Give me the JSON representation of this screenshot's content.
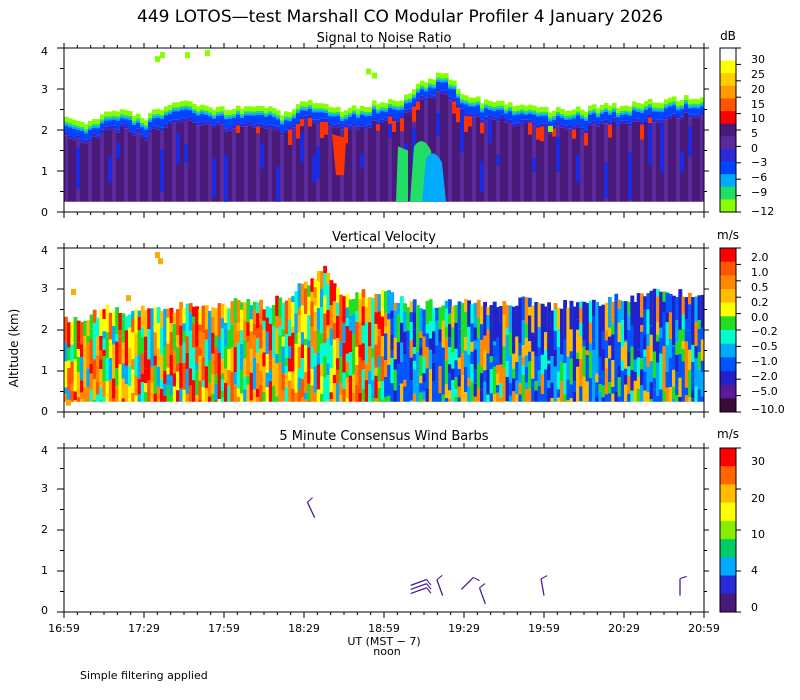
{
  "title": "449 LOTOS—test Marshall CO Modular Profiler  4 January 2026",
  "ylabel": "Altitude (km)",
  "xlabel": "UT  (MST − 7)",
  "noon_label": "noon",
  "footer": "Simple filtering applied",
  "x_ticks": [
    "16:59",
    "17:29",
    "17:59",
    "18:29",
    "18:59",
    "19:29",
    "19:59",
    "20:29",
    "20:59"
  ],
  "chart_data": [
    {
      "type": "heatmap",
      "title": "Signal to Noise Ratio",
      "unit": "dB",
      "x_range": [
        "16:59",
        "20:59"
      ],
      "ylim": [
        0,
        4
      ],
      "y_ticks": [
        "0",
        "1",
        "2",
        "3",
        "4"
      ],
      "colorbar": {
        "labels": [
          "30",
          "25",
          "20",
          "15",
          "10",
          "5",
          "0",
          "−3",
          "−6",
          "−9",
          "−12"
        ],
        "colors": [
          "#ffffff",
          "#ffff00",
          "#ffcc00",
          "#ff9900",
          "#ff5500",
          "#ff0000",
          "#4a1a7a",
          "#5b2a9a",
          "#2a2ad8",
          "#0044ff",
          "#00aaff",
          "#22dd66",
          "#88ff00"
        ]
      },
      "top_height_km": [
        2.3,
        2.1,
        2.4,
        2.5,
        2.3,
        2.6,
        2.7,
        2.6,
        2.5,
        2.6,
        2.6,
        2.4,
        2.7,
        2.6,
        2.5,
        2.6,
        2.7,
        2.8,
        3.2,
        3.4,
        2.9,
        2.7,
        2.7,
        2.6,
        2.5,
        2.5,
        2.5,
        2.6,
        2.6,
        2.7,
        2.7,
        2.8,
        2.8
      ]
    },
    {
      "type": "heatmap",
      "title": "Vertical Velocity",
      "unit": "m/s",
      "x_range": [
        "16:59",
        "20:59"
      ],
      "ylim": [
        0,
        4
      ],
      "y_ticks": [
        "0",
        "1",
        "2",
        "3",
        "4"
      ],
      "colorbar": {
        "labels": [
          "2.0",
          "1.0",
          "0.5",
          "0.2",
          "0.0",
          "−0.2",
          "−0.5",
          "−1.0",
          "−2.0",
          "−5.0",
          "−10.0"
        ],
        "colors": [
          "#ff0000",
          "#ff5500",
          "#ff8800",
          "#ffbb00",
          "#ffff00",
          "#22dd22",
          "#00ffcc",
          "#00aaff",
          "#0055ff",
          "#2222cc",
          "#5a1a9a",
          "#3a0a3a"
        ]
      },
      "top_height_km": [
        2.3,
        2.3,
        2.5,
        2.4,
        2.6,
        2.5,
        2.6,
        2.5,
        2.6,
        2.7,
        2.6,
        2.8,
        3.1,
        3.5,
        2.8,
        2.9,
        2.9,
        2.7,
        2.6,
        2.7,
        2.7,
        2.6,
        2.6,
        2.7,
        2.6,
        2.6,
        2.7,
        2.7,
        2.8,
        2.8,
        3.0,
        2.9,
        2.8
      ]
    },
    {
      "type": "scatter",
      "title": "5 Minute Consensus Wind Barbs",
      "unit": "m/s",
      "x_range": [
        "16:59",
        "20:59"
      ],
      "ylim": [
        0,
        4
      ],
      "y_ticks": [
        "0",
        "1",
        "2",
        "3",
        "4"
      ],
      "colorbar": {
        "labels": [
          "30",
          "20",
          "10",
          "4",
          "0"
        ],
        "colors": [
          "#ff0000",
          "#ff6600",
          "#ffbb00",
          "#ffff00",
          "#88ee00",
          "#00cc66",
          "#00aaff",
          "#2a2ad8",
          "#4a1a7a"
        ]
      },
      "barbs": [
        {
          "time": "18:33",
          "altitude_km": 2.3,
          "direction_deg": 335
        },
        {
          "time": "19:09",
          "altitude_km": 0.45,
          "direction_deg": 70
        },
        {
          "time": "19:09",
          "altitude_km": 0.55,
          "direction_deg": 70
        },
        {
          "time": "19:09",
          "altitude_km": 0.65,
          "direction_deg": 70
        },
        {
          "time": "19:21",
          "altitude_km": 0.4,
          "direction_deg": 340
        },
        {
          "time": "19:28",
          "altitude_km": 0.55,
          "direction_deg": 45
        },
        {
          "time": "19:37",
          "altitude_km": 0.2,
          "direction_deg": 340
        },
        {
          "time": "19:59",
          "altitude_km": 0.4,
          "direction_deg": 350
        },
        {
          "time": "20:50",
          "altitude_km": 0.4,
          "direction_deg": 0
        }
      ]
    }
  ]
}
